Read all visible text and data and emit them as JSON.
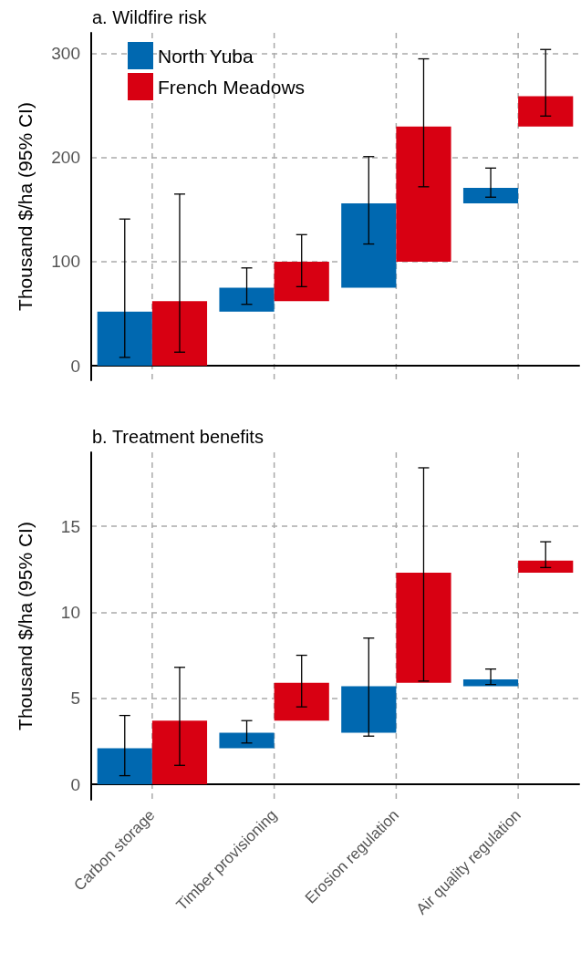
{
  "chart_data": [
    {
      "type": "bar",
      "title": "a. Wildfire risk",
      "ylabel": "Thousand $/ha (95% CI)",
      "categories": [
        null,
        null,
        null,
        null
      ],
      "series": [
        {
          "name": "North Yuba",
          "color": "#0068b0",
          "base": [
            0,
            52,
            75,
            156
          ],
          "values": [
            52,
            23,
            81,
            15
          ],
          "errors": [
            [
              8,
              141
            ],
            [
              59,
              94
            ],
            [
              117,
              201
            ],
            [
              162,
              190
            ]
          ]
        },
        {
          "name": "French Meadows",
          "color": "#d80012",
          "base": [
            0,
            62,
            100,
            230
          ],
          "values": [
            62,
            38,
            130,
            29
          ],
          "errors": [
            [
              13,
              165
            ],
            [
              76,
              126
            ],
            [
              172,
              295
            ],
            [
              240,
              304
            ]
          ]
        }
      ],
      "ylim": [
        -14,
        320
      ],
      "yticks": [
        0,
        100,
        200,
        300
      ],
      "grid": true,
      "legend": "top left",
      "tick_labels": "y"
    },
    {
      "type": "bar",
      "title": "b. Treatment benefits",
      "ylabel": "Thousand $/ha (95% CI)",
      "categories": [
        "Carbon storage",
        "Timber provisioning",
        "Erosion regulation",
        "Air quality regulation"
      ],
      "series": [
        {
          "color": "#0068b0",
          "base": [
            0,
            2.1,
            3,
            5.7
          ],
          "values": [
            2.1,
            0.9,
            2.7,
            0.4
          ],
          "errors": [
            [
              0.5,
              4
            ],
            [
              2.4,
              3.7
            ],
            [
              2.8,
              8.5
            ],
            [
              5.8,
              6.7
            ]
          ]
        },
        {
          "color": "#d80012",
          "base": [
            0,
            3.7,
            5.9,
            12.3
          ],
          "values": [
            3.7,
            2.2,
            6.4,
            0.7
          ],
          "errors": [
            [
              1.1,
              6.8
            ],
            [
              4.5,
              7.5
            ],
            [
              6,
              18.4
            ],
            [
              12.6,
              14.1
            ]
          ]
        }
      ],
      "ylim": [
        -0.9,
        19.3
      ],
      "yticks": [
        0,
        5,
        10,
        15
      ],
      "grid": true
    }
  ]
}
